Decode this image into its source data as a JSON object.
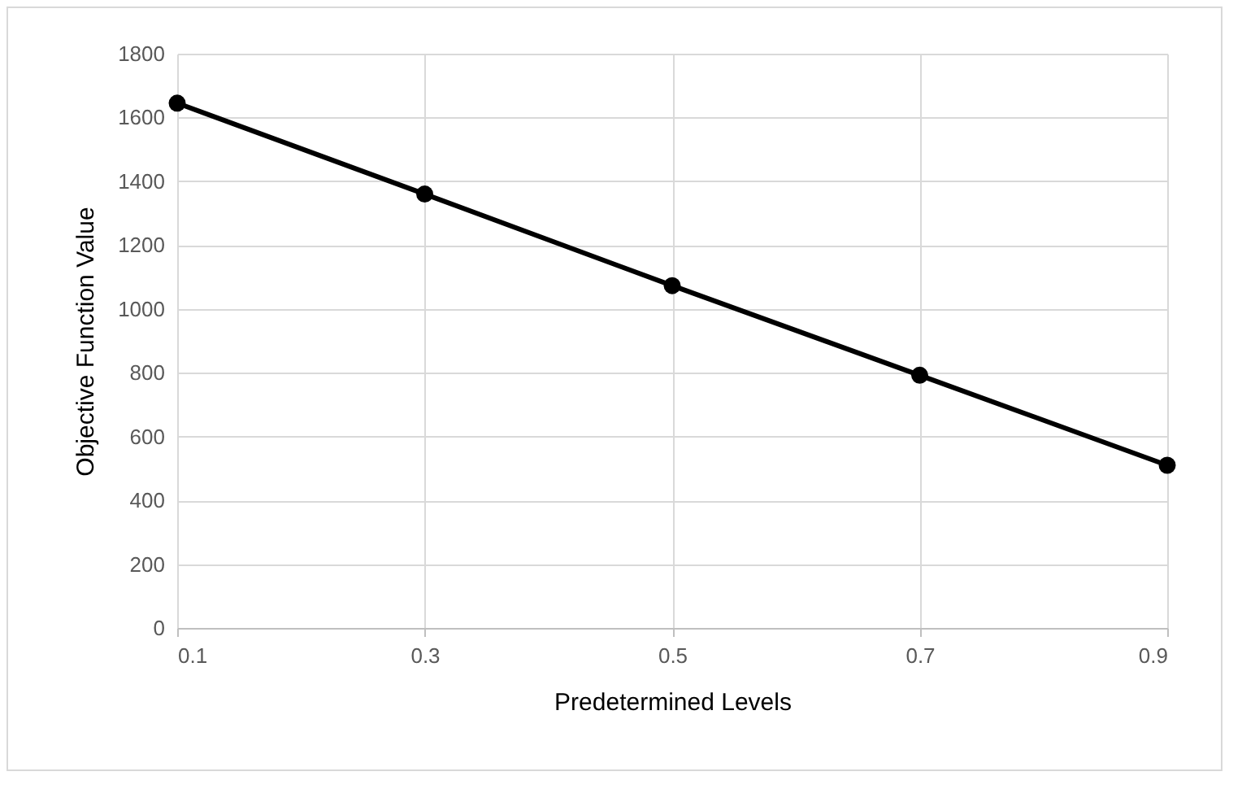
{
  "chart_data": {
    "type": "line",
    "xlabel": "Predetermined Levels",
    "ylabel": "Objective Function Value",
    "x": [
      0.1,
      0.3,
      0.5,
      0.7,
      0.9
    ],
    "series": [
      {
        "color": "#000000",
        "values": [
          1645,
          1360,
          1073,
          792,
          510
        ]
      }
    ],
    "xlim": [
      0.1,
      0.9
    ],
    "xticks": [
      0.1,
      0.3,
      0.5,
      0.7,
      0.9
    ],
    "ylim": [
      0,
      1800
    ],
    "yticks": [
      0,
      200,
      400,
      600,
      800,
      1000,
      1200,
      1400,
      1600,
      1800
    ],
    "grid": true,
    "marker": "circle",
    "line_style": "solid"
  }
}
